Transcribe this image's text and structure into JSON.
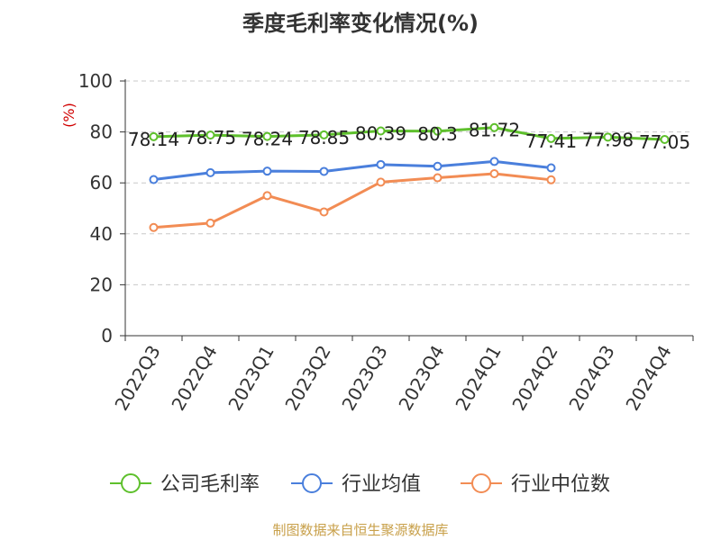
{
  "chart_data": {
    "type": "line",
    "title": "季度毛利率变化情况(%)",
    "ylabel": "(%)",
    "ylim": [
      0,
      100
    ],
    "yticks": [
      0,
      20,
      40,
      60,
      80,
      100
    ],
    "categories": [
      "2022Q3",
      "2022Q4",
      "2023Q1",
      "2023Q2",
      "2023Q3",
      "2023Q4",
      "2024Q1",
      "2024Q2",
      "2024Q3",
      "2024Q4"
    ],
    "grid": true,
    "legend_position": "bottom",
    "series": [
      {
        "name": "公司毛利率",
        "color": "#5ec02c",
        "values": [
          78.14,
          78.75,
          78.24,
          78.85,
          80.39,
          80.3,
          81.72,
          77.41,
          77.98,
          77.05
        ],
        "labels": [
          "78.14",
          "78.75",
          "78.24",
          "78.85",
          "80.39",
          "80.3",
          "81.72",
          "77.41",
          "77.98",
          "77.05"
        ]
      },
      {
        "name": "行业均值",
        "color": "#4a7fdc",
        "values": [
          61.3,
          64.0,
          64.6,
          64.5,
          67.2,
          66.5,
          68.4,
          65.9,
          null,
          null
        ]
      },
      {
        "name": "行业中位数",
        "color": "#f28c54",
        "values": [
          42.5,
          44.2,
          55.0,
          48.6,
          60.3,
          62.0,
          63.6,
          61.2,
          null,
          null
        ]
      }
    ]
  },
  "footer": {
    "source": "制图数据来自恒生聚源数据库"
  }
}
